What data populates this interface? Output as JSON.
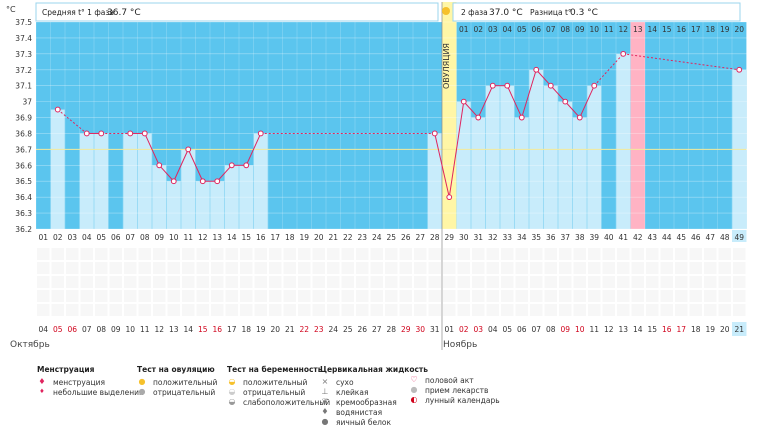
{
  "unit_label": "°C",
  "header": {
    "phase1_label": "Средняя t° 1 фаза",
    "phase1_value": "36.7 °C",
    "phase2_label": "2 фаза",
    "phase2_value": "37.0 °C",
    "diff_label": "Разница t°",
    "diff_value": "0.3 °C"
  },
  "ovulation_label": "ОВУЛЯЦИЯ",
  "months": {
    "first": "Октябрь",
    "second": "Ноябрь"
  },
  "colors": {
    "sky": "#5bc5ee",
    "bar": "#c8ecfb",
    "ovulation": "#fff6a6",
    "pink_col": "#ffb3c4",
    "line": "#e0245e",
    "highlight": "#c8ecfb",
    "red_date": "#d0021b"
  },
  "chart_data": {
    "type": "line",
    "title": "",
    "ylabel": "°C",
    "ylim": [
      36.2,
      37.5
    ],
    "ytick_labels": [
      "37.5",
      "37.4",
      "37.3",
      "37.2",
      "37.1",
      "37",
      "36.9",
      "36.8",
      "36.7",
      "36.6",
      "36.5",
      "36.4",
      "36.3",
      "36.2"
    ],
    "cycle_days": [
      "01",
      "02",
      "03",
      "04",
      "05",
      "06",
      "07",
      "08",
      "09",
      "10",
      "11",
      "12",
      "13",
      "14",
      "15",
      "16",
      "17",
      "18",
      "19",
      "20",
      "21",
      "22",
      "23",
      "24",
      "25",
      "26",
      "27",
      "28",
      "29",
      "30",
      "31",
      "32",
      "33",
      "34",
      "35",
      "36",
      "37",
      "38",
      "39",
      "40",
      "41",
      "42",
      "43",
      "44",
      "45",
      "46",
      "47",
      "48",
      "49"
    ],
    "top_days": [
      "01",
      "02",
      "03",
      "04",
      "05",
      "06",
      "07",
      "08",
      "09",
      "10",
      "11",
      "12",
      "13",
      "14",
      "15",
      "16",
      "17",
      "18",
      "19",
      "20"
    ],
    "dates": [
      "04",
      "05",
      "06",
      "07",
      "08",
      "09",
      "10",
      "11",
      "12",
      "13",
      "14",
      "15",
      "16",
      "17",
      "18",
      "19",
      "20",
      "21",
      "22",
      "23",
      "24",
      "25",
      "26",
      "27",
      "28",
      "29",
      "30",
      "31",
      "01",
      "02",
      "03",
      "04",
      "05",
      "06",
      "07",
      "08",
      "09",
      "10",
      "11",
      "12",
      "13",
      "14",
      "15",
      "16",
      "17",
      "18",
      "19",
      "20",
      "21"
    ],
    "red_dates": [
      1,
      2,
      11,
      12,
      18,
      19,
      25,
      26,
      29,
      30,
      36,
      37,
      43,
      44
    ],
    "temperatures": [
      null,
      36.95,
      null,
      36.8,
      36.8,
      null,
      36.8,
      36.8,
      36.6,
      36.5,
      36.7,
      36.5,
      36.5,
      36.6,
      36.6,
      36.8,
      null,
      null,
      null,
      null,
      null,
      null,
      null,
      null,
      null,
      null,
      null,
      36.8,
      36.4,
      37.0,
      36.9,
      37.1,
      37.1,
      36.9,
      37.2,
      37.1,
      37.0,
      36.9,
      37.1,
      null,
      37.3,
      null,
      null,
      null,
      null,
      null,
      null,
      null,
      37.2
    ],
    "ovulation_day": 29,
    "pink_day": 42,
    "highlight_day": 49,
    "midline": 36.7
  },
  "legend": {
    "menstruation": {
      "title": "Менструация",
      "items": [
        "менструация",
        "небольшие выделения"
      ]
    },
    "ovulation_test": {
      "title": "Тест на овуляцию",
      "items": [
        "положительный",
        "отрицательный"
      ]
    },
    "pregnancy_test": {
      "title": "Тест на беременность",
      "items": [
        "положительный",
        "отрицательный",
        "слабоположительный"
      ]
    },
    "cervical_fluid": {
      "title": "Цервикальная жидкость",
      "items": [
        "сухо",
        "клейкая",
        "кремообразная",
        "водянистая",
        "яичный белок"
      ]
    },
    "other": {
      "items": [
        "половой акт",
        "прием лекарств",
        "лунный календарь"
      ]
    }
  }
}
